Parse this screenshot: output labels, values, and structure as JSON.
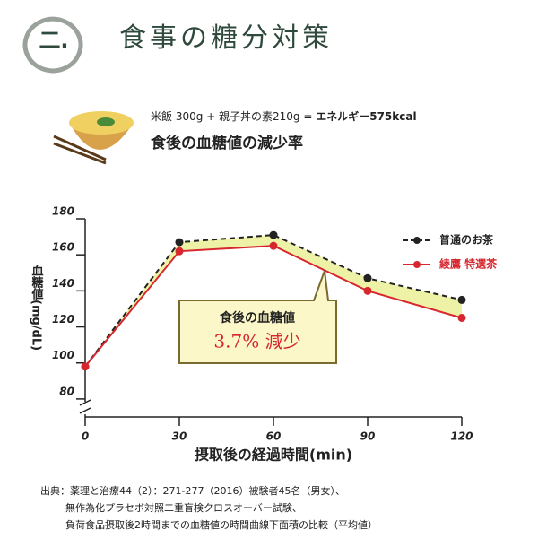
{
  "header": {
    "badge": "二.",
    "title": "食事の糖分対策"
  },
  "meal": {
    "formula": "米飯 300g + 親子丼の素210g = ",
    "energy": "エネルギー575kcal",
    "subtitle": "食後の血糖値の減少率"
  },
  "chart_data": {
    "type": "line",
    "x": [
      0,
      30,
      60,
      90,
      120
    ],
    "xlim": [
      0,
      120
    ],
    "xticks": [
      0,
      30,
      60,
      90,
      120
    ],
    "ylim": [
      70,
      180
    ],
    "yticks": [
      80,
      100,
      120,
      140,
      160,
      180
    ],
    "x_label": "摂取後の経過時間(min)",
    "y_label": "血糖値(mg/dL)",
    "series": [
      {
        "name": "普通のお茶",
        "color": "#222222",
        "dashed": true,
        "values": [
          98,
          167,
          171,
          147,
          135
        ]
      },
      {
        "name": "綾鷹 特選茶",
        "color": "#d7262e",
        "dashed": false,
        "values": [
          98,
          162,
          165,
          140,
          125
        ]
      }
    ],
    "legend": "upper right",
    "annotation": {
      "line1": "食後の血糖値",
      "line2": "3.7% 減少"
    }
  },
  "source": [
    "出典：薬理と治療44（2）：271-277（2016）被験者45名（男女）、",
    "無作為化プラセボ対照二重盲検クロスオーバー試験、",
    "負荷食品摂取後2時間までの血糖値の時間曲線下面積の比較（平均値）"
  ]
}
